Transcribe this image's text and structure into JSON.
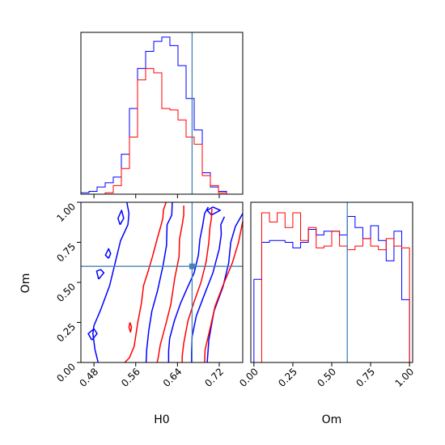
{
  "chart_data": {
    "type": "corner",
    "parameters": [
      "H0",
      "Om"
    ],
    "truth": {
      "H0": 0.668,
      "Om": 0.6
    },
    "colors": {
      "blue": "#0000ff",
      "red": "#ff0000",
      "truth": "#4682b4"
    },
    "h0_panel": {
      "xlabel": "H0",
      "xlim": [
        0.455,
        0.765
      ],
      "ticks": [
        0.48,
        0.56,
        0.64,
        0.72
      ],
      "tick_labels": [
        "0.48",
        "0.56",
        "0.64",
        "0.72"
      ]
    },
    "om_panel": {
      "ylabel": "Om",
      "ylim": [
        0.0,
        1.0
      ],
      "ticks": [
        0.0,
        0.25,
        0.5,
        0.75,
        1.0
      ],
      "tick_labels": [
        "0.00",
        "0.25",
        "0.50",
        "0.75",
        "1.00"
      ]
    },
    "om_hist_panel": {
      "xlabel": "Om",
      "xlim": [
        -0.02,
        1.02
      ],
      "ticks": [
        0.0,
        0.25,
        0.5,
        0.75,
        1.0
      ],
      "tick_labels": [
        "0.00",
        "0.25",
        "0.50",
        "0.75",
        "1.00"
      ]
    },
    "h0_histogram": {
      "bin_edges": [
        0.455,
        0.4705,
        0.486,
        0.5015,
        0.517,
        0.5325,
        0.548,
        0.5635,
        0.579,
        0.5945,
        0.61,
        0.6255,
        0.641,
        0.6565,
        0.672,
        0.6875,
        0.703,
        0.7185,
        0.734,
        0.7495,
        0.765
      ],
      "series": [
        {
          "color": "blue",
          "counts": [
            1,
            2,
            5,
            8,
            12,
            28,
            60,
            88,
            100,
            107,
            110,
            104,
            90,
            67,
            45,
            15,
            5,
            2,
            0,
            0
          ]
        },
        {
          "color": "red",
          "counts": [
            0,
            0,
            0,
            1,
            6,
            18,
            40,
            80,
            88,
            85,
            60,
            59,
            52,
            40,
            35,
            13,
            6,
            1,
            0,
            0
          ]
        }
      ]
    },
    "om_histogram": {
      "bin_edges": [
        0.0,
        0.05,
        0.1,
        0.15,
        0.2,
        0.25,
        0.3,
        0.35,
        0.4,
        0.45,
        0.5,
        0.55,
        0.6,
        0.65,
        0.7,
        0.75,
        0.8,
        0.85,
        0.9,
        0.95,
        1.0
      ],
      "series": [
        {
          "color": "blue",
          "counts": [
            45,
            65,
            66,
            66,
            65,
            62,
            65,
            72,
            69,
            71,
            71,
            69,
            79,
            73,
            67,
            74,
            66,
            55,
            71,
            34
          ]
        },
        {
          "color": "red",
          "counts": [
            0,
            81,
            76,
            81,
            73,
            81,
            66,
            73,
            62,
            63,
            71,
            63,
            61,
            63,
            67,
            63,
            61,
            67,
            63,
            62
          ]
        }
      ]
    },
    "contours_2d": [
      {
        "color": "blue",
        "points": [
          [
            0.543,
            1.0
          ],
          [
            0.547,
            0.93
          ],
          [
            0.545,
            0.86
          ],
          [
            0.531,
            0.76
          ],
          [
            0.522,
            0.64
          ],
          [
            0.51,
            0.48
          ],
          [
            0.493,
            0.33
          ],
          [
            0.48,
            0.23
          ],
          [
            0.478,
            0.18
          ],
          [
            0.482,
            0.08
          ],
          [
            0.488,
            0.0
          ]
        ]
      },
      {
        "color": "blue",
        "points": [
          [
            0.63,
            1.0
          ],
          [
            0.629,
            0.92
          ],
          [
            0.62,
            0.86
          ],
          [
            0.619,
            0.73
          ],
          [
            0.612,
            0.6
          ],
          [
            0.602,
            0.45
          ],
          [
            0.591,
            0.32
          ],
          [
            0.585,
            0.2
          ],
          [
            0.581,
            0.08
          ],
          [
            0.58,
            0.0
          ]
        ]
      },
      {
        "color": "blue",
        "points": [
          [
            0.697,
            0.0
          ],
          [
            0.7,
            0.14
          ],
          [
            0.71,
            0.32
          ],
          [
            0.727,
            0.47
          ],
          [
            0.738,
            0.62
          ],
          [
            0.742,
            0.75
          ],
          [
            0.751,
            0.85
          ],
          [
            0.765,
            0.93
          ]
        ]
      },
      {
        "color": "blue",
        "points": [
          [
            0.623,
            0.0
          ],
          [
            0.623,
            0.07
          ],
          [
            0.625,
            0.15
          ],
          [
            0.634,
            0.26
          ],
          [
            0.646,
            0.37
          ],
          [
            0.658,
            0.46
          ],
          [
            0.672,
            0.56
          ],
          [
            0.68,
            0.67
          ],
          [
            0.683,
            0.77
          ],
          [
            0.688,
            0.85
          ],
          [
            0.692,
            0.93
          ],
          [
            0.699,
            0.97
          ]
        ]
      },
      {
        "color": "blue",
        "points": [
          [
            0.667,
            0.0
          ],
          [
            0.667,
            0.06
          ],
          [
            0.668,
            0.16
          ],
          [
            0.676,
            0.29
          ],
          [
            0.69,
            0.41
          ],
          [
            0.708,
            0.56
          ],
          [
            0.72,
            0.71
          ],
          [
            0.724,
            0.8
          ],
          [
            0.723,
            0.86
          ],
          [
            0.73,
            0.91
          ]
        ]
      },
      {
        "color": "blue",
        "points": [
          [
            0.476,
            0.14
          ],
          [
            0.486,
            0.18
          ],
          [
            0.48,
            0.21
          ],
          [
            0.469,
            0.18
          ],
          [
            0.476,
            0.14
          ]
        ]
      },
      {
        "color": "blue",
        "points": [
          [
            0.489,
            0.52
          ],
          [
            0.499,
            0.56
          ],
          [
            0.493,
            0.58
          ],
          [
            0.485,
            0.57
          ],
          [
            0.489,
            0.52
          ]
        ]
      },
      {
        "color": "blue",
        "points": [
          [
            0.508,
            0.65
          ],
          [
            0.512,
            0.68
          ],
          [
            0.508,
            0.71
          ],
          [
            0.502,
            0.67
          ],
          [
            0.508,
            0.65
          ]
        ]
      },
      {
        "color": "blue",
        "points": [
          [
            0.53,
            0.86
          ],
          [
            0.537,
            0.9
          ],
          [
            0.533,
            0.95
          ],
          [
            0.526,
            0.9
          ],
          [
            0.53,
            0.86
          ]
        ]
      },
      {
        "color": "blue",
        "points": [
          [
            0.705,
            0.92
          ],
          [
            0.722,
            0.95
          ],
          [
            0.708,
            0.97
          ],
          [
            0.697,
            0.95
          ],
          [
            0.705,
            0.92
          ]
        ]
      },
      {
        "color": "red",
        "points": [
          [
            0.618,
            1.0
          ],
          [
            0.613,
            0.95
          ],
          [
            0.612,
            0.9
          ],
          [
            0.607,
            0.84
          ],
          [
            0.601,
            0.77
          ],
          [
            0.592,
            0.66
          ],
          [
            0.582,
            0.55
          ],
          [
            0.575,
            0.48
          ],
          [
            0.571,
            0.37
          ],
          [
            0.564,
            0.25
          ],
          [
            0.557,
            0.1
          ],
          [
            0.548,
            0.03
          ],
          [
            0.539,
            0.0
          ]
        ]
      },
      {
        "color": "red",
        "points": [
          [
            0.765,
            0.88
          ],
          [
            0.757,
            0.75
          ],
          [
            0.745,
            0.62
          ],
          [
            0.727,
            0.48
          ],
          [
            0.712,
            0.35
          ],
          [
            0.703,
            0.22
          ],
          [
            0.693,
            0.08
          ],
          [
            0.692,
            0.0
          ]
        ]
      },
      {
        "color": "red",
        "points": [
          [
            0.652,
            0.98
          ],
          [
            0.652,
            0.92
          ],
          [
            0.649,
            0.86
          ],
          [
            0.644,
            0.77
          ],
          [
            0.643,
            0.66
          ],
          [
            0.635,
            0.53
          ],
          [
            0.627,
            0.36
          ],
          [
            0.617,
            0.23
          ],
          [
            0.607,
            0.11
          ],
          [
            0.603,
            0.03
          ],
          [
            0.601,
            0.0
          ]
        ]
      },
      {
        "color": "red",
        "points": [
          [
            0.706,
            0.96
          ],
          [
            0.705,
            0.9
          ],
          [
            0.702,
            0.84
          ],
          [
            0.7,
            0.75
          ],
          [
            0.695,
            0.63
          ],
          [
            0.685,
            0.5
          ],
          [
            0.672,
            0.38
          ],
          [
            0.66,
            0.26
          ],
          [
            0.652,
            0.12
          ],
          [
            0.649,
            0.04
          ],
          [
            0.649,
            0.0
          ]
        ]
      },
      {
        "color": "red",
        "points": [
          [
            0.549,
            0.25
          ],
          [
            0.552,
            0.22
          ],
          [
            0.55,
            0.19
          ],
          [
            0.547,
            0.22
          ],
          [
            0.549,
            0.25
          ]
        ]
      }
    ]
  }
}
